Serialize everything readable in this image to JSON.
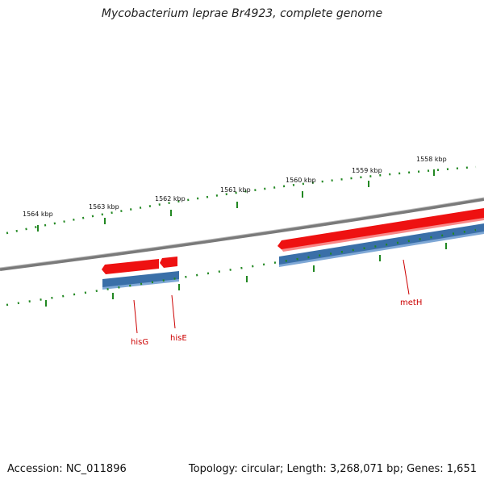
{
  "title": "Mycobacterium leprae Br4923, complete genome",
  "footer": {
    "accession": "Accession: NC_011896",
    "stats": "Topology: circular; Length: 3,268,071 bp; Genes: 1,651"
  },
  "outer_ruler": {
    "labels": [
      "1564 kbp",
      "1563 kbp",
      "1562 kbp",
      "1561 kbp",
      "1560 kbp",
      "1559 kbp",
      "1558 kbp"
    ]
  },
  "genes": [
    {
      "name": "hisG",
      "strand": "forward"
    },
    {
      "name": "hisE",
      "strand": "forward"
    },
    {
      "name": "metH",
      "strand": "forward"
    }
  ],
  "colors": {
    "forward_strand": "#ee1111",
    "cds": "#3a6fa8",
    "backbone": "#7a7a7a",
    "ticks": "#228822",
    "label": "#cc0000"
  }
}
